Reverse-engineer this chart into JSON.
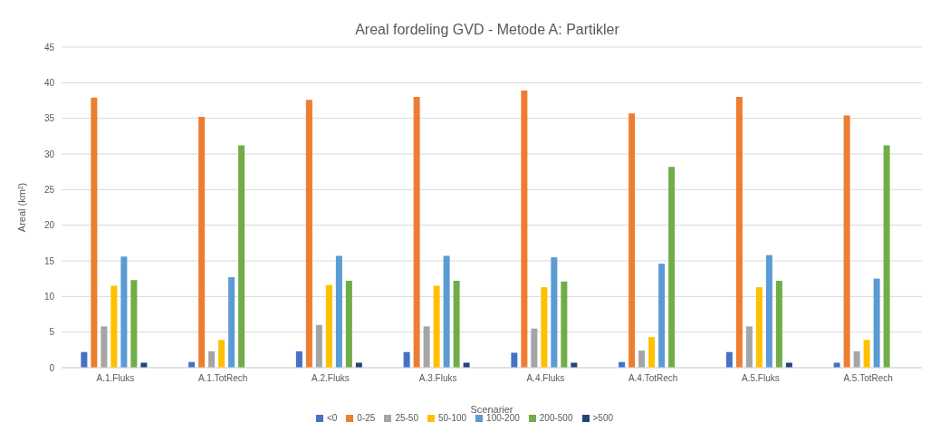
{
  "chart_data": {
    "type": "bar",
    "title": "Areal fordeling GVD - Metode A: Partikler",
    "xlabel": "Scenarier",
    "ylabel": "Areal (km²)",
    "categories": [
      "A.1.Fluks",
      "A.1.TotRech",
      "A.2.Fluks",
      "A.3.Fluks",
      "A.4.Fluks",
      "A.4.TotRech",
      "A.5.Fluks",
      "A.5.TotRech"
    ],
    "series": [
      {
        "name": "<0",
        "color": "#4472c4",
        "values": [
          2.2,
          0.8,
          2.3,
          2.2,
          2.1,
          0.8,
          2.2,
          0.7
        ]
      },
      {
        "name": "0-25",
        "color": "#ed7d31",
        "values": [
          37.9,
          35.2,
          37.6,
          38.0,
          38.9,
          35.7,
          38.0,
          35.4
        ]
      },
      {
        "name": "25-50",
        "color": "#a5a5a5",
        "values": [
          5.8,
          2.3,
          6.0,
          5.8,
          5.5,
          2.4,
          5.8,
          2.3
        ]
      },
      {
        "name": "50-100",
        "color": "#ffc000",
        "values": [
          11.5,
          3.9,
          11.6,
          11.5,
          11.3,
          4.3,
          11.3,
          3.9
        ]
      },
      {
        "name": "100-200",
        "color": "#5b9bd5",
        "values": [
          15.6,
          12.7,
          15.7,
          15.7,
          15.5,
          14.6,
          15.8,
          12.5
        ]
      },
      {
        "name": "200-500",
        "color": "#70ad47",
        "values": [
          12.3,
          31.2,
          12.2,
          12.2,
          12.1,
          28.2,
          12.2,
          31.2
        ]
      },
      {
        "name": ">500",
        "color": "#264478",
        "values": [
          0.7,
          0,
          0.7,
          0.7,
          0.7,
          0,
          0.7,
          0
        ]
      }
    ],
    "ylim": [
      0,
      45
    ],
    "yticks": [
      0,
      5,
      10,
      15,
      20,
      25,
      30,
      35,
      40,
      45
    ],
    "grid": "y",
    "legend": "bottom"
  }
}
